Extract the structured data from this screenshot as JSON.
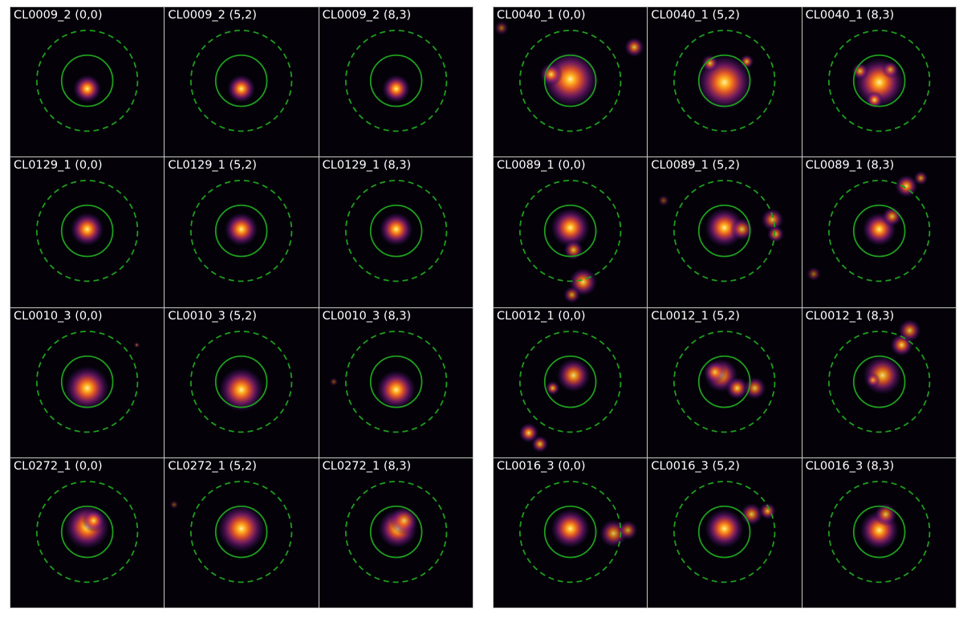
{
  "figure": {
    "colors": {
      "background": "#040208",
      "inner_ring": "#1e9e1e",
      "outer_ring": "#1e9e1e",
      "separator": "#c8c8c8",
      "label": "#ffffff"
    },
    "colormap": "inferno",
    "left_grid": [
      {
        "title": "CL0009_2 (0,0)",
        "morphology": "compact"
      },
      {
        "title": "CL0009_2 (5,2)",
        "morphology": "compact"
      },
      {
        "title": "CL0009_2 (8,3)",
        "morphology": "compact"
      },
      {
        "title": "CL0129_1 (0,0)",
        "morphology": "compact"
      },
      {
        "title": "CL0129_1 (5,2)",
        "morphology": "compact"
      },
      {
        "title": "CL0129_1 (8,3)",
        "morphology": "compact"
      },
      {
        "title": "CL0010_3 (0,0)",
        "morphology": "extended"
      },
      {
        "title": "CL0010_3 (5,2)",
        "morphology": "extended"
      },
      {
        "title": "CL0010_3 (8,3)",
        "morphology": "extended"
      },
      {
        "title": "CL0272_1 (0,0)",
        "morphology": "extended"
      },
      {
        "title": "CL0272_1 (5,2)",
        "morphology": "extended"
      },
      {
        "title": "CL0272_1 (8,3)",
        "morphology": "extended"
      }
    ],
    "right_grid": [
      {
        "title": "CL0040_1 (0,0)",
        "morphology": "clumpy"
      },
      {
        "title": "CL0040_1 (5,2)",
        "morphology": "clumpy"
      },
      {
        "title": "CL0040_1 (8,3)",
        "morphology": "clumpy"
      },
      {
        "title": "CL0089_1 (0,0)",
        "morphology": "merger"
      },
      {
        "title": "CL0089_1 (5,2)",
        "morphology": "merger"
      },
      {
        "title": "CL0089_1 (8,3)",
        "morphology": "merger"
      },
      {
        "title": "CL0012_1 (0,0)",
        "morphology": "merger"
      },
      {
        "title": "CL0012_1 (5,2)",
        "morphology": "merger"
      },
      {
        "title": "CL0012_1 (8,3)",
        "morphology": "merger"
      },
      {
        "title": "CL0016_3 (0,0)",
        "morphology": "merger"
      },
      {
        "title": "CL0016_3 (5,2)",
        "morphology": "merger"
      },
      {
        "title": "CL0016_3 (8,3)",
        "morphology": "merger"
      }
    ]
  }
}
